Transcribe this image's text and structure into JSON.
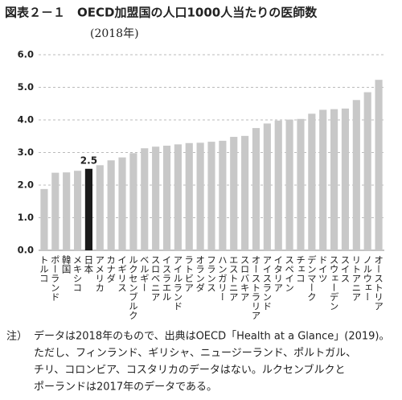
{
  "chart_data": {
    "type": "bar",
    "title": "図表２－１　OECD加盟国の人口1000人当たりの医師数",
    "subtitle": "(2018年)",
    "categories": [
      "トルコ",
      "ポーランド",
      "韓国",
      "メキシコ",
      "日本",
      "アメリカ",
      "カナダ",
      "イギリス",
      "ルクセンブルク",
      "ベルギー",
      "スロベニア",
      "イスラエル",
      "アイルランド",
      "ラトビア",
      "オランダ",
      "フランス",
      "ハンガリー",
      "エストニア",
      "スロバキア",
      "オーストラリア",
      "アイスランド",
      "イタリア",
      "スペイン",
      "チェコ",
      "デンマーク",
      "ドイツ",
      "スウェーデン",
      "スイス",
      "リトアニア",
      "ノルウェー",
      "オーストリア"
    ],
    "values": [
      1.88,
      2.38,
      2.39,
      2.44,
      2.5,
      2.61,
      2.76,
      2.85,
      2.98,
      3.13,
      3.18,
      3.21,
      3.25,
      3.29,
      3.3,
      3.33,
      3.36,
      3.48,
      3.51,
      3.75,
      3.89,
      3.98,
      4.01,
      4.03,
      4.19,
      4.31,
      4.33,
      4.35,
      4.61,
      4.85,
      5.23
    ],
    "value_labels": [
      null,
      null,
      null,
      null,
      "2.5",
      null,
      null,
      null,
      null,
      null,
      null,
      null,
      null,
      null,
      null,
      null,
      null,
      null,
      null,
      null,
      null,
      null,
      null,
      null,
      null,
      null,
      null,
      null,
      null,
      null,
      null
    ],
    "colors": [
      "#c8c8c8",
      "#c8c8c8",
      "#c8c8c8",
      "#c8c8c8",
      "#1a1a1a",
      "#c8c8c8",
      "#c8c8c8",
      "#c8c8c8",
      "#c8c8c8",
      "#c8c8c8",
      "#c8c8c8",
      "#c8c8c8",
      "#c8c8c8",
      "#c8c8c8",
      "#c8c8c8",
      "#c8c8c8",
      "#c8c8c8",
      "#c8c8c8",
      "#c8c8c8",
      "#c8c8c8",
      "#c8c8c8",
      "#c8c8c8",
      "#c8c8c8",
      "#c8c8c8",
      "#c8c8c8",
      "#c8c8c8",
      "#c8c8c8",
      "#c8c8c8",
      "#c8c8c8",
      "#c8c8c8",
      "#c8c8c8"
    ],
    "ylim": [
      0,
      6
    ],
    "yticks": [
      {
        "value": 0,
        "label": "0.0"
      },
      {
        "value": 1,
        "label": "1.0"
      },
      {
        "value": 2,
        "label": "2.0"
      },
      {
        "value": 3,
        "label": "3.0"
      },
      {
        "value": 4,
        "label": "4.0"
      },
      {
        "value": 5,
        "label": "5.0"
      },
      {
        "value": 6,
        "label": "6.0"
      }
    ],
    "grid": true,
    "note_label": "注）",
    "note": [
      "データは2018年のもので、出典はOECD「Health at a Glance」(2019)。",
      "ただし、フィンランド、ギリシャ、ニュージーランド、ポルトガル、",
      "チリ、コロンビア、コスタリカのデータはない。ルクセンブルクと",
      "ポーランドは2017年のデータである。"
    ]
  }
}
